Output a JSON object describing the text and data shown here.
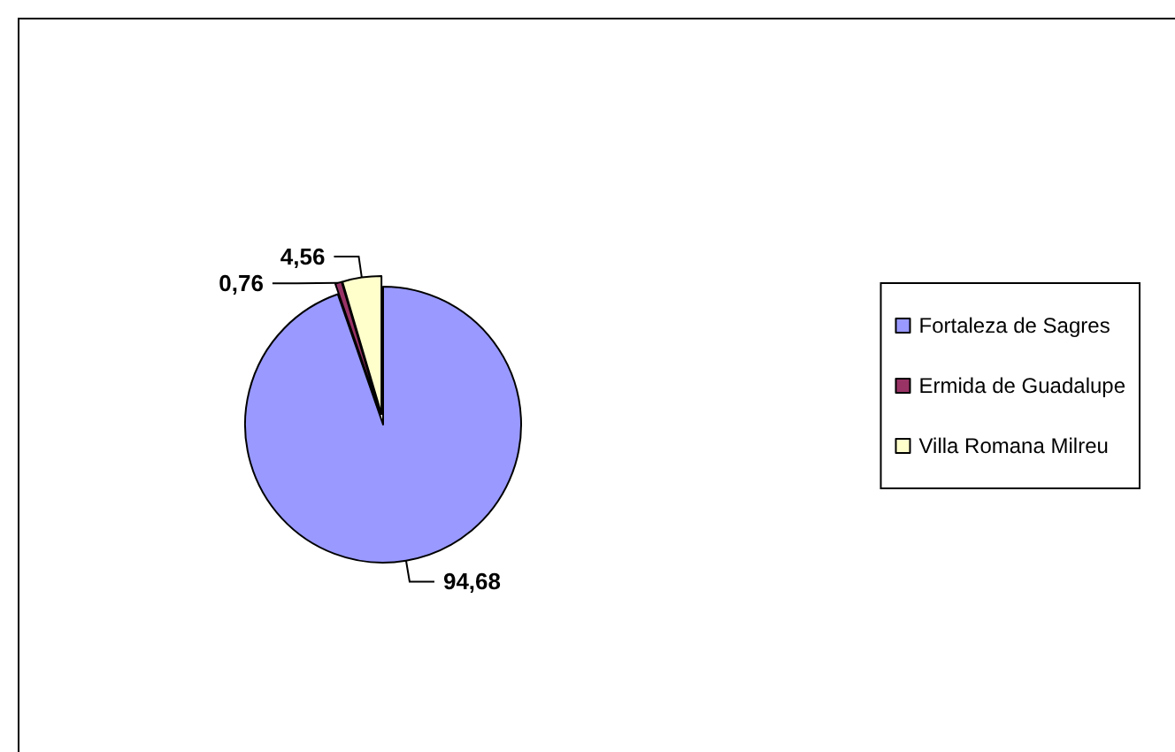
{
  "chart_data": {
    "type": "pie",
    "categories": [
      "Fortaleza de Sagres",
      "Ermida de Guadalupe",
      "Villa Romana Milreu"
    ],
    "values": [
      94.68,
      0.76,
      4.56
    ],
    "colors": [
      "#9999ff",
      "#993366",
      "#ffffcc"
    ],
    "value_labels": [
      "94,68",
      "0,76",
      "4,56"
    ],
    "legend": "right"
  }
}
